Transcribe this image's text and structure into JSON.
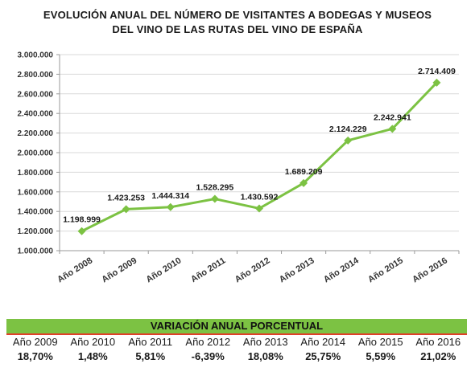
{
  "chart_data": {
    "type": "line",
    "title_lines": [
      "EVOLUCIÓN ANUAL DEL NÚMERO DE VISITANTES A BODEGAS Y MUSEOS",
      "DEL VINO DE LAS RUTAS DEL VINO DE ESPAÑA"
    ],
    "categories": [
      "Año 2008",
      "Año 2009",
      "Año 2010",
      "Año 2011",
      "Año 2012",
      "Año 2013",
      "Año 2014",
      "Año 2015",
      "Año 2016"
    ],
    "values": [
      1198999,
      1423253,
      1444314,
      1528295,
      1430592,
      1689209,
      2124229,
      2242941,
      2714409
    ],
    "data_labels": [
      "1.198.999",
      "1.423.253",
      "1.444.314",
      "1.528.295",
      "1.430.592",
      "1.689.209",
      "2.124.229",
      "2.242.941",
      "2.714.409"
    ],
    "ylim": [
      1000000,
      3000000
    ],
    "y_ticks": [
      1000000,
      1200000,
      1400000,
      1600000,
      1800000,
      2000000,
      2200000,
      2400000,
      2600000,
      2800000,
      3000000
    ],
    "y_tick_labels": [
      "1.000.000",
      "1.200.000",
      "1.400.000",
      "1.600.000",
      "1.800.000",
      "2.000.000",
      "2.200.000",
      "2.400.000",
      "2.600.000",
      "2.800.000",
      "3.000.000"
    ],
    "grid": true,
    "line_color": "#7cc243",
    "grid_color": "#d9d9d9"
  },
  "variation_table": {
    "title": "VARIACIÓN ANUAL PORCENTUAL",
    "band_color": "#7cc243",
    "rule_color": "#e0402a",
    "years": [
      "Año 2009",
      "Año 2010",
      "Año 2011",
      "Año 2012",
      "Año 2013",
      "Año 2014",
      "Año 2015",
      "Año 2016"
    ],
    "values": [
      "18,70%",
      "1,48%",
      "5,81%",
      "-6,39%",
      "18,08%",
      "25,75%",
      "5,59%",
      "21,02%"
    ]
  }
}
